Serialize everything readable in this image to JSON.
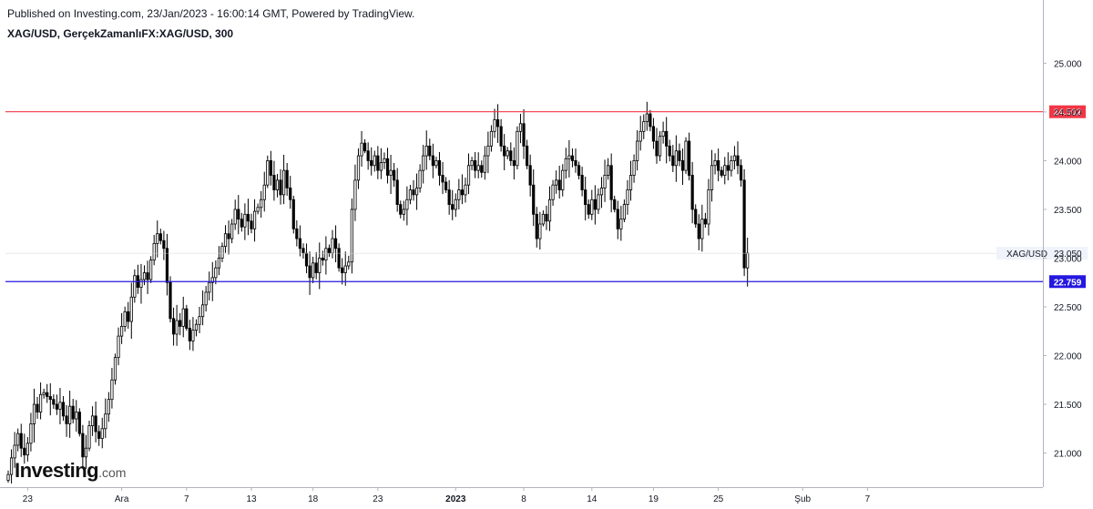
{
  "header": {
    "published": "Published on Investing.com, 23/Jan/2023 - 16:00:14 GMT, Powered by TradingView.",
    "symbol": "XAG/USD, GerçekZamanlıFX:XAG/USD, 300"
  },
  "logo": {
    "main": "Investing",
    "suffix": ".com"
  },
  "colors": {
    "resistance": "#f23645",
    "support": "#2418e0",
    "candle_up": "#ffffff",
    "candle_down": "#000000",
    "axis": "#b2b5be"
  },
  "chart_data": {
    "type": "candlestick",
    "title": "XAG/USD, GerçekZamanlıFX:XAG/USD, 300",
    "ylim": [
      20.65,
      25.2
    ],
    "y_ticks": [
      "25.000",
      "24.500",
      "24.000",
      "23.500",
      "23.000",
      "22.500",
      "22.000",
      "21.500",
      "21.000"
    ],
    "y_tick_values": [
      25.0,
      24.5,
      24.0,
      23.5,
      23.0,
      22.5,
      22.0,
      21.5,
      21.0
    ],
    "x_ticks": [
      {
        "label": "23",
        "bold": false
      },
      {
        "label": "Ara",
        "bold": false
      },
      {
        "label": "7",
        "bold": false
      },
      {
        "label": "13",
        "bold": false
      },
      {
        "label": "18",
        "bold": false
      },
      {
        "label": "23",
        "bold": false
      },
      {
        "label": "2023",
        "bold": true
      },
      {
        "label": "8",
        "bold": false
      },
      {
        "label": "14",
        "bold": false
      },
      {
        "label": "19",
        "bold": false
      },
      {
        "label": "25",
        "bold": false
      },
      {
        "label": "Şub",
        "bold": false
      },
      {
        "label": "7",
        "bold": false
      }
    ],
    "x_tick_index": [
      6,
      35,
      55,
      75,
      94,
      114,
      138,
      159,
      180,
      199,
      219,
      245,
      265
    ],
    "hlines": [
      {
        "label": "24.502",
        "value": 24.502,
        "color": "#f23645"
      },
      {
        "label": "22.759",
        "value": 22.759,
        "color": "#2418e0"
      }
    ],
    "last_price": {
      "name": "XAG/USD",
      "label": "23.050",
      "value": 23.05
    },
    "closes": [
      20.78,
      20.95,
      21.08,
      21.2,
      21.05,
      20.98,
      21.1,
      21.3,
      21.5,
      21.42,
      21.6,
      21.62,
      21.58,
      21.55,
      21.5,
      21.45,
      21.52,
      21.38,
      21.3,
      21.48,
      21.35,
      21.42,
      21.2,
      20.96,
      21.05,
      21.28,
      21.38,
      21.22,
      21.15,
      21.25,
      21.4,
      21.55,
      21.75,
      21.98,
      22.2,
      22.3,
      22.45,
      22.35,
      22.6,
      22.82,
      22.7,
      22.78,
      22.85,
      22.78,
      22.98,
      23.15,
      23.25,
      23.18,
      23.1,
      22.75,
      22.38,
      22.22,
      22.36,
      22.3,
      22.48,
      22.28,
      22.15,
      22.26,
      22.32,
      22.4,
      22.52,
      22.65,
      22.75,
      22.8,
      22.9,
      23.0,
      23.12,
      23.25,
      23.2,
      23.35,
      23.5,
      23.4,
      23.32,
      23.45,
      23.38,
      23.3,
      23.48,
      23.52,
      23.6,
      23.75,
      24.0,
      23.85,
      23.7,
      23.8,
      23.65,
      23.9,
      23.72,
      23.6,
      23.3,
      23.2,
      23.1,
      23.05,
      22.92,
      22.8,
      22.95,
      22.85,
      23.0,
      22.98,
      23.1,
      23.05,
      23.2,
      23.1,
      22.9,
      22.85,
      22.92,
      22.96,
      23.5,
      23.8,
      24.05,
      24.18,
      24.1,
      24.0,
      23.95,
      24.05,
      23.9,
      23.98,
      24.02,
      23.85,
      23.9,
      23.8,
      23.55,
      23.45,
      23.5,
      23.6,
      23.7,
      23.65,
      23.72,
      23.9,
      24.05,
      24.15,
      24.05,
      23.95,
      24.0,
      23.85,
      23.78,
      23.7,
      23.55,
      23.5,
      23.6,
      23.7,
      23.65,
      23.75,
      23.95,
      24.0,
      23.9,
      23.95,
      23.88,
      24.05,
      24.15,
      24.3,
      24.42,
      24.35,
      24.15,
      24.05,
      24.1,
      24.0,
      23.95,
      24.3,
      24.38,
      24.15,
      23.95,
      23.75,
      23.45,
      23.2,
      23.35,
      23.45,
      23.38,
      23.6,
      23.75,
      23.8,
      23.7,
      23.9,
      24.02,
      24.05,
      24.0,
      23.95,
      23.85,
      23.7,
      23.55,
      23.45,
      23.6,
      23.5,
      23.65,
      23.72,
      23.85,
      23.95,
      23.6,
      23.5,
      23.3,
      23.4,
      23.55,
      23.7,
      23.85,
      24.0,
      24.2,
      24.3,
      24.4,
      24.48,
      24.35,
      24.2,
      24.05,
      24.25,
      24.3,
      24.15,
      24.05,
      23.95,
      24.1,
      24.0,
      23.9,
      24.2,
      23.85,
      23.5,
      23.35,
      23.2,
      23.4,
      23.35,
      23.7,
      23.95,
      24.0,
      23.9,
      23.85,
      23.95,
      23.9,
      24.0,
      24.05,
      23.95,
      23.8,
      22.9,
      23.05
    ],
    "series": [
      {
        "name": "XAG/USD",
        "values": []
      }
    ]
  }
}
